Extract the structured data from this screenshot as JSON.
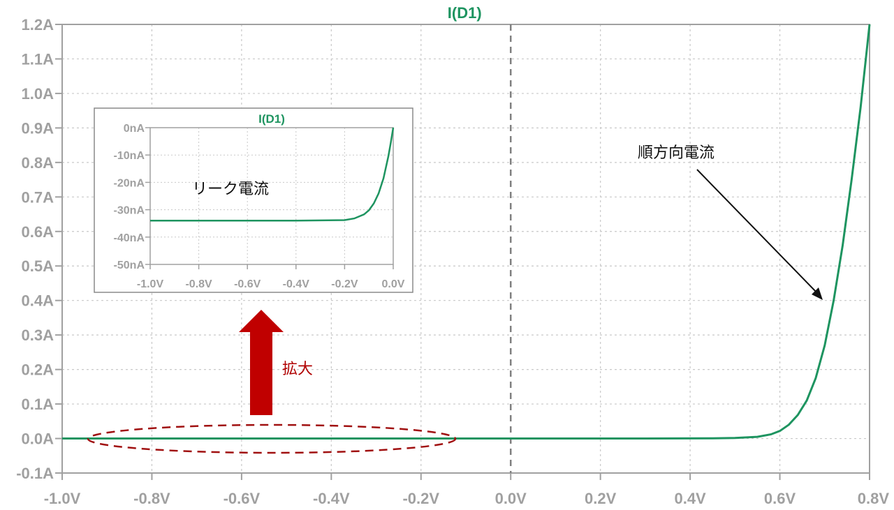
{
  "chart_data": [
    {
      "type": "line",
      "title": "I(D1)",
      "xlabel": "",
      "ylabel": "",
      "xlim": [
        -1.0,
        0.8
      ],
      "ylim": [
        -0.1,
        1.2
      ],
      "grid": true,
      "x_ticks": [
        "-1.0V",
        "-0.8V",
        "-0.6V",
        "-0.4V",
        "-0.2V",
        "0.0V",
        "0.2V",
        "0.4V",
        "0.6V",
        "0.8V"
      ],
      "y_ticks": [
        "-0.1A",
        "0.0A",
        "0.1A",
        "0.2A",
        "0.3A",
        "0.4A",
        "0.5A",
        "0.6A",
        "0.7A",
        "0.8A",
        "0.9A",
        "1.0A",
        "1.1A",
        "1.2A"
      ],
      "series": [
        {
          "name": "I(D1)",
          "color": "#1e9460",
          "x": [
            -1.0,
            -0.5,
            0.0,
            0.3,
            0.45,
            0.5,
            0.55,
            0.58,
            0.6,
            0.62,
            0.64,
            0.66,
            0.68,
            0.7,
            0.72,
            0.74,
            0.76,
            0.78,
            0.8
          ],
          "y": [
            0.0,
            0.0,
            0.0,
            0.0,
            0.0004,
            0.0015,
            0.005,
            0.012,
            0.022,
            0.04,
            0.068,
            0.11,
            0.175,
            0.27,
            0.4,
            0.56,
            0.75,
            0.96,
            1.2
          ]
        }
      ]
    },
    {
      "type": "line",
      "title": "I(D1)",
      "xlabel": "",
      "ylabel": "",
      "xlim": [
        -1.0,
        0.0
      ],
      "ylim": [
        -50,
        0
      ],
      "grid": true,
      "x_ticks": [
        "-1.0V",
        "-0.8V",
        "-0.6V",
        "-0.4V",
        "-0.2V",
        "0.0V"
      ],
      "y_ticks": [
        "0nA",
        "-10nA",
        "-20nA",
        "-30nA",
        "-40nA",
        "-50nA"
      ],
      "series": [
        {
          "name": "I(D1)",
          "color": "#1e9460",
          "x": [
            -1.0,
            -0.4,
            -0.2,
            -0.16,
            -0.12,
            -0.1,
            -0.08,
            -0.06,
            -0.04,
            -0.02,
            -0.01,
            0.0
          ],
          "y": [
            -34.0,
            -34.0,
            -33.8,
            -33.2,
            -31.7,
            -30.2,
            -27.7,
            -24.0,
            -18.5,
            -10.5,
            -5.5,
            0.0
          ]
        }
      ]
    }
  ],
  "annotations": {
    "forward_current": "順方向電流",
    "leakage_current": "リーク電流",
    "zoom": "拡大"
  },
  "colors": {
    "trace": "#1e9460",
    "axis_label": "#a0a0a0",
    "grid": "#c8c8c8",
    "zoom_arrow": "#c00000",
    "ellipse": "#a01010"
  }
}
